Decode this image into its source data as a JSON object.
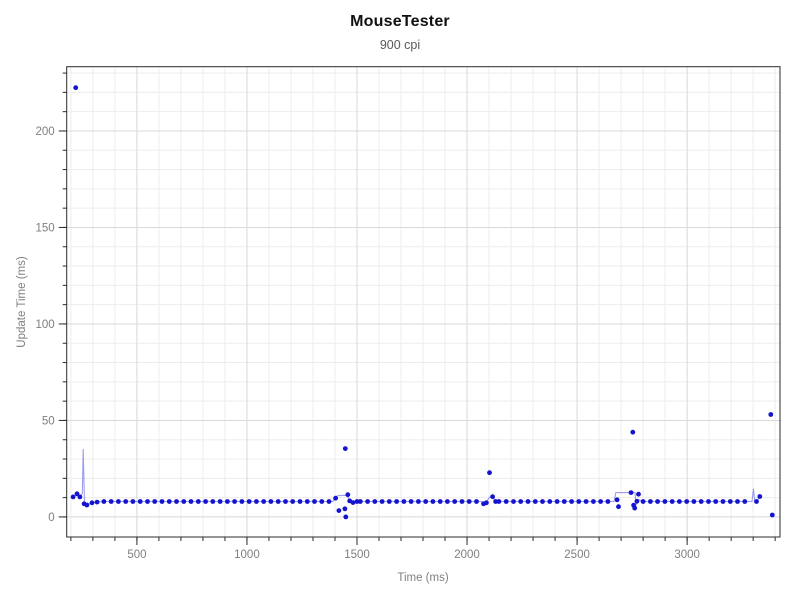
{
  "header": {
    "title": "MouseTester",
    "subtitle": "900 cpi"
  },
  "chart_data": {
    "type": "scatter",
    "title": "MouseTester",
    "subtitle": "900 cpi",
    "xlabel": "Time (ms)",
    "ylabel": "Update Time (ms)",
    "legend": "none",
    "grid": "on",
    "x_range": [
      181,
      3422
    ],
    "y_range": [
      -10.4,
      233.3
    ],
    "x_ticks_major": [
      500,
      1000,
      1500,
      2000,
      2500,
      3000
    ],
    "x_minor": {
      "from": 200,
      "to": 3400,
      "step": 100
    },
    "y_ticks_major": [
      0,
      50,
      100,
      150,
      200
    ],
    "y_minor": {
      "from": 0,
      "to": 230,
      "step": 10
    },
    "baseline_runs": [
      {
        "from": 350,
        "to": 1385,
        "step": 33,
        "value": 8
      },
      {
        "from": 1515,
        "to": 2065,
        "step": 33,
        "value": 8
      },
      {
        "from": 2145,
        "to": 2665,
        "step": 33,
        "value": 8
      },
      {
        "from": 2800,
        "to": 3290,
        "step": 33,
        "value": 8
      }
    ],
    "points": [
      [
        210,
        10.4
      ],
      [
        222,
        222.4
      ],
      [
        228,
        12
      ],
      [
        241,
        10.4
      ],
      [
        260,
        6.8
      ],
      [
        273,
        6.2
      ],
      [
        296,
        7.3
      ],
      [
        319,
        7.7
      ],
      [
        1403,
        9.7
      ],
      [
        1418,
        3.3
      ],
      [
        1445,
        4.2
      ],
      [
        1447,
        35.4
      ],
      [
        1449,
        0
      ],
      [
        1458,
        11.5
      ],
      [
        1467,
        8.3
      ],
      [
        1482,
        7.4
      ],
      [
        1500,
        8
      ],
      [
        2075,
        6.8
      ],
      [
        2088,
        7.3
      ],
      [
        2102,
        22.9
      ],
      [
        2116,
        10.5
      ],
      [
        2130,
        8
      ],
      [
        2682,
        8.9
      ],
      [
        2688,
        5.3
      ],
      [
        2745,
        12.6
      ],
      [
        2753,
        43.9
      ],
      [
        2757,
        6.1
      ],
      [
        2762,
        4.6
      ],
      [
        2772,
        8.1
      ],
      [
        2779,
        11.8
      ],
      [
        3315,
        8
      ],
      [
        3330,
        10.6
      ],
      [
        3380,
        53.1
      ],
      [
        3387,
        1
      ]
    ],
    "line_points": [
      [
        210,
        10.4
      ],
      [
        228,
        12
      ],
      [
        241,
        10.4
      ],
      [
        252,
        12
      ],
      [
        256,
        35
      ],
      [
        262,
        6.8
      ],
      [
        273,
        6.2
      ],
      [
        296,
        7.3
      ],
      [
        319,
        7.7
      ],
      [
        350,
        8
      ],
      [
        1390,
        8
      ],
      [
        1403,
        9.7
      ],
      [
        1412,
        11
      ],
      [
        1455,
        11.2
      ],
      [
        1462,
        9.5
      ],
      [
        1470,
        8.3
      ],
      [
        1482,
        7.4
      ],
      [
        1500,
        8
      ],
      [
        2068,
        8
      ],
      [
        2075,
        6.8
      ],
      [
        2088,
        7.8
      ],
      [
        2102,
        10.2
      ],
      [
        2116,
        10.5
      ],
      [
        2126,
        8.6
      ],
      [
        2135,
        8
      ],
      [
        2668,
        8
      ],
      [
        2676,
        12.6
      ],
      [
        2763,
        12.6
      ],
      [
        2768,
        6.2
      ],
      [
        2774,
        8.1
      ],
      [
        2780,
        9
      ],
      [
        2795,
        8
      ],
      [
        3295,
        8
      ],
      [
        3301,
        14.4
      ],
      [
        3308,
        8
      ],
      [
        3315,
        8
      ],
      [
        3330,
        10.6
      ]
    ],
    "colors": {
      "dot": "#1414cf",
      "line": "rgba(60,60,225,0.5)",
      "grid_minor": "#ededed",
      "grid_major": "#d9d9d9",
      "axis": "#2b2b2b",
      "tick_label": "#7f7f7f",
      "title": "#111111",
      "subtitle": "#595959"
    }
  }
}
